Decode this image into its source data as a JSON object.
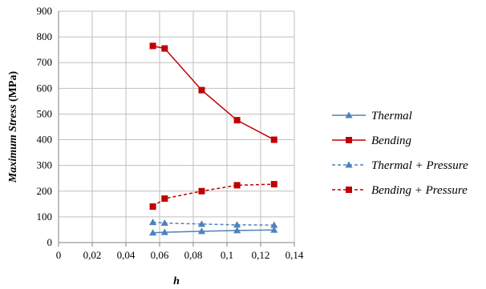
{
  "chart_data": {
    "type": "line",
    "xlabel": "h",
    "ylabel": "Maximum Stress",
    "ylabel_unit": "(MPa)",
    "xlim": [
      0,
      0.14
    ],
    "ylim": [
      0,
      900
    ],
    "x_ticks": [
      "0",
      "0,02",
      "0,04",
      "0,06",
      "0,08",
      "0,1",
      "0,12",
      "0,14"
    ],
    "y_ticks": [
      "0",
      "100",
      "200",
      "300",
      "400",
      "500",
      "600",
      "700",
      "800",
      "900"
    ],
    "grid": true,
    "legend_position": "right",
    "x": [
      0.056,
      0.063,
      0.085,
      0.106,
      0.128
    ],
    "series": [
      {
        "name": "Thermal",
        "values": [
          38,
          40,
          44,
          47,
          49
        ],
        "color": "#4f81bd",
        "marker": "triangle",
        "dash": "solid"
      },
      {
        "name": "Bending",
        "values": [
          765,
          755,
          593,
          476,
          400
        ],
        "color": "#c00000",
        "marker": "square",
        "dash": "solid"
      },
      {
        "name": "Thermal + Pressure",
        "values": [
          79,
          76,
          72,
          69,
          68
        ],
        "color": "#4f81bd",
        "marker": "triangle",
        "dash": "dashed"
      },
      {
        "name": "Bending + Pressure",
        "values": [
          140,
          171,
          200,
          223,
          227
        ],
        "color": "#c00000",
        "marker": "square",
        "dash": "dashed"
      }
    ]
  }
}
